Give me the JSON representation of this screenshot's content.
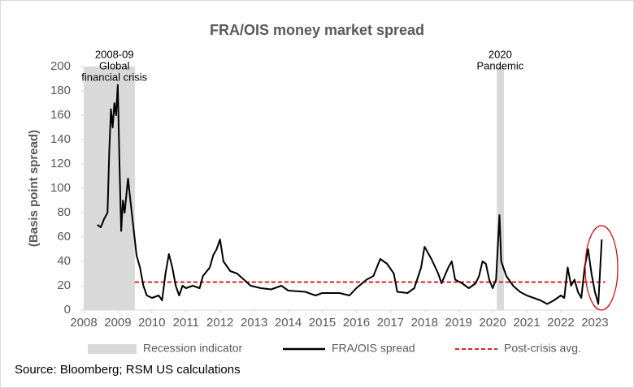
{
  "chart_data": {
    "type": "line",
    "title": "FRA/OIS money market spread",
    "y_label": "(Basis point spread)",
    "source": "Source: Bloomberg; RSM US calculations",
    "xlim": [
      2008,
      2023.3
    ],
    "xticks": [
      2008,
      2009,
      2010,
      2011,
      2012,
      2013,
      2014,
      2015,
      2016,
      2017,
      2018,
      2019,
      2020,
      2021,
      2022,
      2023
    ],
    "ylim": [
      0,
      200
    ],
    "yticks": [
      0,
      20,
      40,
      60,
      80,
      100,
      120,
      140,
      160,
      180,
      200
    ],
    "x": [
      2008.4,
      2008.5,
      2008.6,
      2008.7,
      2008.75,
      2008.8,
      2008.85,
      2008.9,
      2008.95,
      2009.0,
      2009.05,
      2009.1,
      2009.15,
      2009.2,
      2009.3,
      2009.35,
      2009.45,
      2009.55,
      2009.65,
      2009.75,
      2009.85,
      2010.0,
      2010.2,
      2010.3,
      2010.4,
      2010.5,
      2010.6,
      2010.7,
      2010.8,
      2010.9,
      2011.0,
      2011.2,
      2011.4,
      2011.5,
      2011.7,
      2011.8,
      2011.9,
      2012.0,
      2012.1,
      2012.3,
      2012.5,
      2012.7,
      2012.9,
      2013.2,
      2013.5,
      2013.8,
      2014.0,
      2014.5,
      2014.8,
      2015.0,
      2015.5,
      2015.8,
      2016.0,
      2016.3,
      2016.5,
      2016.7,
      2016.9,
      2017.1,
      2017.2,
      2017.5,
      2017.7,
      2017.9,
      2018.0,
      2018.2,
      2018.4,
      2018.5,
      2018.7,
      2018.8,
      2018.9,
      2019.1,
      2019.3,
      2019.5,
      2019.6,
      2019.7,
      2019.8,
      2019.9,
      2020.0,
      2020.1,
      2020.2,
      2020.25,
      2020.4,
      2020.6,
      2020.8,
      2021.0,
      2021.2,
      2021.4,
      2021.6,
      2021.8,
      2022.0,
      2022.1,
      2022.2,
      2022.3,
      2022.4,
      2022.5,
      2022.6,
      2022.7,
      2022.8,
      2022.9,
      2023.0,
      2023.1,
      2023.2
    ],
    "series": [
      {
        "name": "FRA/OIS spread",
        "color": "#000000",
        "values": [
          70,
          68,
          75,
          80,
          130,
          165,
          150,
          170,
          160,
          185,
          120,
          65,
          90,
          80,
          108,
          95,
          70,
          45,
          35,
          20,
          12,
          10,
          12,
          8,
          30,
          46,
          35,
          20,
          12,
          20,
          18,
          20,
          18,
          28,
          35,
          45,
          50,
          58,
          40,
          32,
          30,
          25,
          20,
          18,
          17,
          20,
          16,
          15,
          12,
          14,
          14,
          12,
          18,
          25,
          28,
          42,
          38,
          30,
          15,
          14,
          18,
          35,
          52,
          42,
          30,
          22,
          35,
          40,
          25,
          22,
          18,
          22,
          28,
          40,
          38,
          25,
          18,
          25,
          78,
          40,
          28,
          20,
          15,
          12,
          10,
          8,
          5,
          8,
          12,
          10,
          35,
          20,
          25,
          15,
          10,
          35,
          50,
          30,
          15,
          5,
          58
        ]
      }
    ],
    "recession": {
      "name": "Recession indicator",
      "color": "#d9d9d9",
      "periods": [
        [
          2008,
          2009.5
        ],
        [
          2020.12,
          2020.33
        ]
      ]
    },
    "average": {
      "name": "Post-crisis avg.",
      "color": "#e00000",
      "value": 23,
      "start": 2009.5
    },
    "annotations": [
      {
        "x": 2008.9,
        "lines": [
          "2008-09",
          "Global",
          "financial crisis"
        ]
      },
      {
        "x": 2020.22,
        "lines": [
          "2020",
          "Pandemic"
        ]
      }
    ]
  }
}
